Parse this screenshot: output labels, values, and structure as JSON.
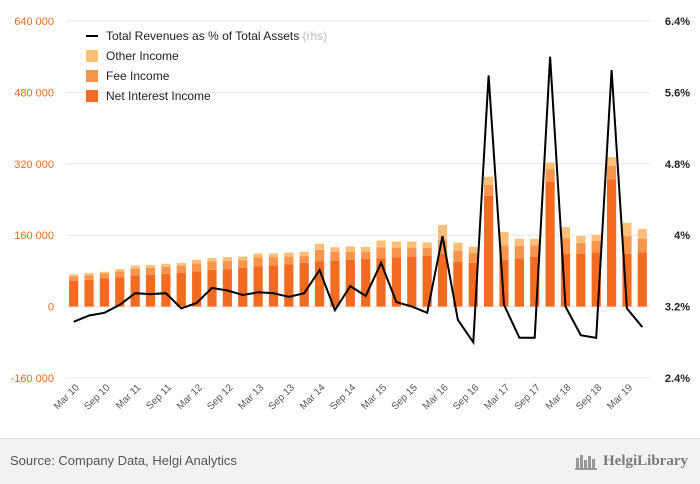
{
  "chart_data": {
    "type": "bar",
    "stacked": true,
    "categories": [
      "Mar 10",
      "Jun 10",
      "Sep 10",
      "Dec 10",
      "Mar 11",
      "Jun 11",
      "Sep 11",
      "Dec 11",
      "Mar 12",
      "Jun 12",
      "Sep 12",
      "Dec 12",
      "Mar 13",
      "Jun 13",
      "Sep 13",
      "Dec 13",
      "Mar 14",
      "Jun 14",
      "Sep 14",
      "Dec 14",
      "Mar 15",
      "Jun 15",
      "Sep 15",
      "Dec 15",
      "Mar 16",
      "Jun 16",
      "Sep 16",
      "Dec 16",
      "Mar 17",
      "Jun 17",
      "Sep 17",
      "Dec 17",
      "Mar 18",
      "Jun 18",
      "Sep 18",
      "Dec 18",
      "Mar 19",
      "Jun 19"
    ],
    "x_tick_labels": [
      "Mar 10",
      "Sep 10",
      "Mar 11",
      "Sep 11",
      "Mar 12",
      "Sep 12",
      "Mar 13",
      "Sep 13",
      "Mar 14",
      "Sep 14",
      "Mar 15",
      "Sep 15",
      "Mar 16",
      "Sep 16",
      "Mar 17",
      "Sep 17",
      "Mar 18",
      "Sep 18",
      "Mar 19"
    ],
    "series": [
      {
        "name": "Net Interest Income",
        "color": "#f26b21",
        "values": [
          58000,
          60000,
          63000,
          66000,
          70000,
          71000,
          73000,
          76000,
          79000,
          82000,
          84000,
          87000,
          90000,
          92000,
          95000,
          98000,
          102000,
          103000,
          105000,
          107000,
          108000,
          110000,
          112000,
          114000,
          118000,
          100000,
          98000,
          248000,
          105000,
          108000,
          112000,
          280000,
          118000,
          118000,
          122000,
          285000,
          118000,
          122000
        ]
      },
      {
        "name": "Fee Income",
        "color": "#f7944d",
        "values": [
          10000,
          10000,
          11000,
          13000,
          15000,
          16000,
          16000,
          15000,
          18000,
          19000,
          18000,
          17000,
          20000,
          19000,
          17000,
          16000,
          25000,
          20000,
          18000,
          16000,
          25000,
          22000,
          20000,
          18000,
          30000,
          25000,
          22000,
          25000,
          32000,
          28000,
          25000,
          28000,
          35000,
          25000,
          25000,
          30000,
          40000,
          30000
        ]
      },
      {
        "name": "Other Income",
        "color": "#fbbf77",
        "values": [
          4000,
          5000,
          4000,
          5000,
          7000,
          6000,
          7000,
          7000,
          8000,
          8000,
          9000,
          8000,
          9000,
          8000,
          9000,
          9000,
          14000,
          10000,
          12000,
          11000,
          15000,
          14000,
          14000,
          12000,
          35000,
          18000,
          14000,
          18000,
          30000,
          16000,
          15000,
          15000,
          25000,
          15000,
          14000,
          20000,
          30000,
          22000
        ]
      }
    ],
    "line_series": {
      "name": "Total Revenues as % of Total Assets",
      "axis": "rhs",
      "color": "#000000",
      "values": [
        3.03,
        3.1,
        3.13,
        3.22,
        3.35,
        3.34,
        3.35,
        3.18,
        3.24,
        3.41,
        3.38,
        3.33,
        3.36,
        3.35,
        3.31,
        3.35,
        3.61,
        3.16,
        3.43,
        3.32,
        3.69,
        3.25,
        3.2,
        3.13,
        3.99,
        3.05,
        2.8,
        5.79,
        3.22,
        2.85,
        2.85,
        6.0,
        3.2,
        2.88,
        2.85,
        5.85,
        3.18,
        2.97
      ]
    },
    "legend_rhs_tag": "(rhs)",
    "y_left": {
      "min": -160000,
      "max": 640000,
      "ticks": [
        -160000,
        0,
        160000,
        320000,
        480000,
        640000
      ],
      "tick_labels": [
        "-160 000",
        "0",
        "160 000",
        "320 000",
        "480 000",
        "640 000"
      ],
      "color": "#f26b21"
    },
    "y_right": {
      "min": 2.4,
      "max": 6.4,
      "ticks": [
        2.4,
        3.2,
        4.0,
        4.8,
        5.6,
        6.4
      ],
      "tick_labels": [
        "2.4%",
        "3.2%",
        "4%",
        "4.8%",
        "5.6%",
        "6.4%"
      ]
    },
    "legend_position": "top-left",
    "grid": true
  },
  "footer": {
    "source": "Source: Company Data, Helgi Analytics",
    "brand": "HelgiLibrary"
  }
}
